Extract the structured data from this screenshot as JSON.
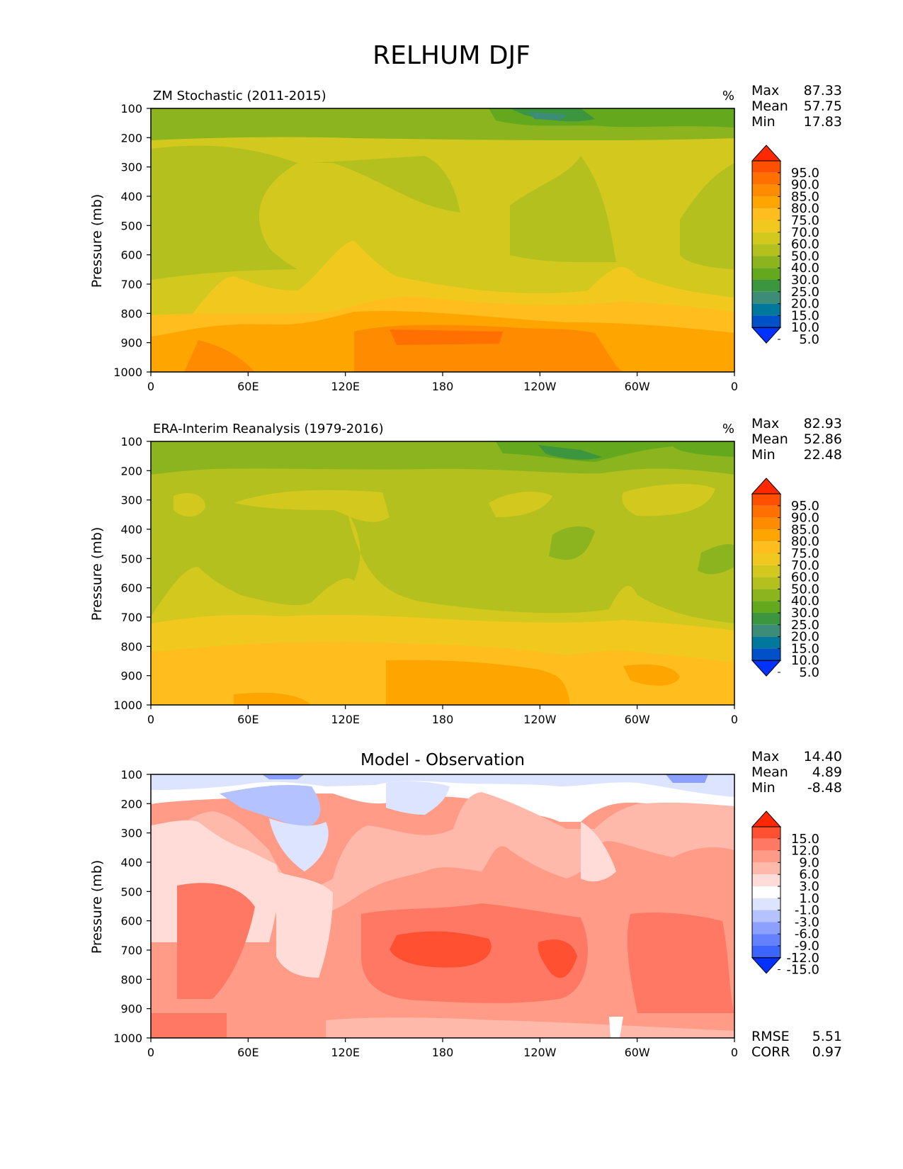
{
  "figure_title": "RELHUM DJF",
  "panels": [
    {
      "title": "ZM Stochastic (2011-2015)",
      "units": "%",
      "stats": [
        {
          "label": "Max",
          "value": "87.33"
        },
        {
          "label": "Mean",
          "value": "57.75"
        },
        {
          "label": "Min",
          "value": "17.83"
        }
      ],
      "colorbar": {
        "labels": [
          "95.0",
          "90.0",
          "85.0",
          "80.0",
          "75.0",
          "70.0",
          "60.0",
          "50.0",
          "40.0",
          "30.0",
          "25.0",
          "20.0",
          "15.0",
          "10.0",
          "5.0"
        ],
        "colors": [
          "#ff2800",
          "#ff5000",
          "#ff7000",
          "#ff8c00",
          "#ffa500",
          "#ffbe1e",
          "#f0c81e",
          "#d2c81e",
          "#b4c01e",
          "#8cb41e",
          "#64a81e",
          "#3c9640",
          "#3c8c78",
          "#00789b",
          "#0050c8",
          "#0032ff"
        ]
      }
    },
    {
      "title": "ERA-Interim Reanalysis (1979-2016)",
      "units": "%",
      "stats": [
        {
          "label": "Max",
          "value": "82.93"
        },
        {
          "label": "Mean",
          "value": "52.86"
        },
        {
          "label": "Min",
          "value": "22.48"
        }
      ],
      "colorbar": {
        "labels": [
          "95.0",
          "90.0",
          "85.0",
          "80.0",
          "75.0",
          "70.0",
          "60.0",
          "50.0",
          "40.0",
          "30.0",
          "25.0",
          "20.0",
          "15.0",
          "10.0",
          "5.0"
        ],
        "colors": [
          "#ff2800",
          "#ff5000",
          "#ff7000",
          "#ff8c00",
          "#ffa500",
          "#ffbe1e",
          "#f0c81e",
          "#d2c81e",
          "#b4c01e",
          "#8cb41e",
          "#64a81e",
          "#3c9640",
          "#3c8c78",
          "#00789b",
          "#0050c8",
          "#0032ff"
        ]
      }
    },
    {
      "title": "Model - Observation",
      "units": "",
      "stats": [
        {
          "label": "Max",
          "value": "14.40"
        },
        {
          "label": "Mean",
          "value": "4.89"
        },
        {
          "label": "Min",
          "value": "-8.48"
        }
      ],
      "extra_stats": [
        {
          "label": "RMSE",
          "value": "5.51"
        },
        {
          "label": "CORR",
          "value": "0.97"
        }
      ],
      "colorbar": {
        "labels": [
          "15.0",
          "12.0",
          "9.0",
          "6.0",
          "3.0",
          "1.0",
          "-1.0",
          "-3.0",
          "-6.0",
          "-9.0",
          "-12.0",
          "-15.0"
        ],
        "colors": [
          "#ff2800",
          "#ff5032",
          "#ff7864",
          "#ff9b87",
          "#ffb9aa",
          "#ffdcd7",
          "#ffffff",
          "#dce4ff",
          "#b4c3ff",
          "#8ca0ff",
          "#6482ff",
          "#3c64ff",
          "#0032ff"
        ]
      }
    }
  ],
  "chart_data": [
    {
      "type": "heatmap",
      "title": "ZM Stochastic (2011-2015)",
      "ylabel": "Pressure (mb)",
      "xlabel": "",
      "x_ticks": [
        "0",
        "60E",
        "120E",
        "180",
        "120W",
        "60W",
        "0"
      ],
      "y_ticks": [
        "100",
        "200",
        "300",
        "400",
        "500",
        "600",
        "700",
        "800",
        "900",
        "1000"
      ],
      "xlim": [
        0,
        360
      ],
      "ylim": [
        1000,
        100
      ],
      "y_levels": [
        100,
        200,
        300,
        400,
        500,
        600,
        700,
        800,
        900,
        1000
      ],
      "approx_field_by_level": [
        28,
        38,
        55,
        50,
        48,
        52,
        62,
        70,
        80,
        78
      ]
    },
    {
      "type": "heatmap",
      "title": "ERA-Interim Reanalysis (1979-2016)",
      "ylabel": "Pressure (mb)",
      "xlabel": "",
      "x_ticks": [
        "0",
        "60E",
        "120E",
        "180",
        "120W",
        "60W",
        "0"
      ],
      "y_ticks": [
        "100",
        "200",
        "300",
        "400",
        "500",
        "600",
        "700",
        "800",
        "900",
        "1000"
      ],
      "xlim": [
        0,
        360
      ],
      "ylim": [
        1000,
        100
      ],
      "y_levels": [
        100,
        200,
        300,
        400,
        500,
        600,
        700,
        800,
        900,
        1000
      ],
      "approx_field_by_level": [
        28,
        35,
        48,
        42,
        42,
        45,
        50,
        58,
        72,
        73
      ]
    },
    {
      "type": "heatmap",
      "title": "Model - Observation",
      "ylabel": "Pressure (mb)",
      "xlabel": "",
      "x_ticks": [
        "0",
        "60E",
        "120E",
        "180",
        "120W",
        "60W",
        "0"
      ],
      "y_ticks": [
        "100",
        "200",
        "300",
        "400",
        "500",
        "600",
        "700",
        "800",
        "900",
        "1000"
      ],
      "xlim": [
        0,
        360
      ],
      "ylim": [
        1000,
        100
      ],
      "y_levels": [
        100,
        200,
        300,
        400,
        500,
        600,
        700,
        800,
        900,
        1000
      ],
      "approx_field_by_level": [
        -4,
        1,
        5,
        4,
        6,
        7,
        9,
        10,
        8,
        5
      ]
    }
  ]
}
